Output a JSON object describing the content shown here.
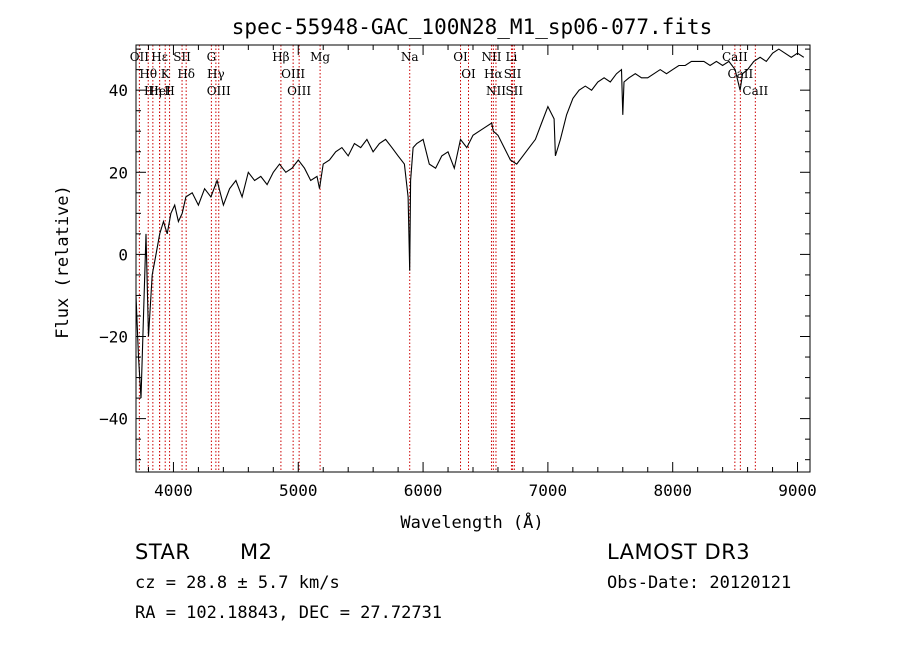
{
  "chart_data": {
    "type": "line",
    "title": "spec-55948-GAC_100N28_M1_sp06-077.fits",
    "xlabel": "Wavelength (Å)",
    "ylabel": "Flux (relative)",
    "xlim": [
      3700,
      9100
    ],
    "ylim": [
      -53,
      51
    ],
    "x_ticks": [
      4000,
      5000,
      6000,
      7000,
      8000,
      9000
    ],
    "y_ticks": [
      -40,
      -20,
      0,
      20,
      40
    ],
    "x_tick_labels": [
      "4000",
      "5000",
      "6000",
      "7000",
      "8000",
      "9000"
    ],
    "y_tick_labels": [
      "−40",
      "−20",
      "0",
      "20",
      "40"
    ],
    "series": [
      {
        "name": "spectrum",
        "x": [
          3700,
          3720,
          3740,
          3760,
          3780,
          3800,
          3830,
          3860,
          3890,
          3920,
          3950,
          3980,
          4010,
          4040,
          4070,
          4100,
          4150,
          4200,
          4250,
          4300,
          4350,
          4400,
          4450,
          4500,
          4550,
          4600,
          4650,
          4700,
          4750,
          4800,
          4850,
          4900,
          4950,
          5000,
          5050,
          5100,
          5150,
          5170,
          5200,
          5250,
          5300,
          5350,
          5400,
          5450,
          5500,
          5550,
          5600,
          5650,
          5700,
          5750,
          5800,
          5850,
          5880,
          5893,
          5900,
          5920,
          5950,
          6000,
          6050,
          6100,
          6150,
          6200,
          6250,
          6300,
          6350,
          6400,
          6450,
          6500,
          6550,
          6563,
          6600,
          6650,
          6700,
          6750,
          6800,
          6850,
          6900,
          6950,
          7000,
          7050,
          7060,
          7100,
          7150,
          7200,
          7250,
          7300,
          7350,
          7400,
          7450,
          7500,
          7550,
          7590,
          7600,
          7610,
          7650,
          7700,
          7750,
          7800,
          7850,
          7900,
          7950,
          8000,
          8050,
          8100,
          8150,
          8200,
          8250,
          8300,
          8350,
          8400,
          8450,
          8500,
          8540,
          8560,
          8600,
          8650,
          8700,
          8750,
          8800,
          8850,
          8900,
          8950,
          9000,
          9050
        ],
        "y": [
          -10,
          -25,
          -35,
          -15,
          5,
          -20,
          -5,
          0,
          5,
          8,
          5,
          10,
          12,
          8,
          10,
          14,
          15,
          12,
          16,
          14,
          18,
          12,
          16,
          18,
          14,
          20,
          18,
          19,
          17,
          20,
          22,
          20,
          21,
          23,
          21,
          18,
          19,
          16,
          22,
          23,
          25,
          26,
          24,
          27,
          26,
          28,
          25,
          27,
          28,
          26,
          24,
          22,
          14,
          -4,
          18,
          26,
          27,
          28,
          22,
          21,
          24,
          25,
          21,
          28,
          26,
          29,
          30,
          31,
          32,
          30,
          29,
          26,
          23,
          22,
          24,
          26,
          28,
          32,
          36,
          33,
          24,
          28,
          34,
          38,
          40,
          41,
          40,
          42,
          43,
          42,
          44,
          45,
          34,
          42,
          43,
          44,
          43,
          43,
          44,
          45,
          44,
          45,
          46,
          46,
          47,
          47,
          47,
          46,
          47,
          46,
          47,
          45,
          40,
          44,
          45,
          47,
          48,
          47,
          49,
          50,
          49,
          48,
          49,
          48
        ]
      }
    ],
    "lines": [
      {
        "label": "Hθ",
        "x": 3798
      },
      {
        "label": "OII",
        "x": 3727
      },
      {
        "label": "Hη",
        "x": 3835
      },
      {
        "label": "Hε",
        "x": 3889
      },
      {
        "label": "K",
        "x": 3934
      },
      {
        "label": "H",
        "x": 3969
      },
      {
        "label": "HeI",
        "x": 3889
      },
      {
        "label": "SII",
        "x": 4069
      },
      {
        "label": "Hδ",
        "x": 4102
      },
      {
        "label": "OIII",
        "x": 4363
      },
      {
        "label": "Hγ",
        "x": 4340
      },
      {
        "label": "G",
        "x": 4304
      },
      {
        "label": "Hβ",
        "x": 4861
      },
      {
        "label": "OIII",
        "x": 4959
      },
      {
        "label": "OIII",
        "x": 5007
      },
      {
        "label": "Mg",
        "x": 5175
      },
      {
        "label": "Na",
        "x": 5893
      },
      {
        "label": "OI",
        "x": 6300
      },
      {
        "label": "OI",
        "x": 6364
      },
      {
        "label": "Hα",
        "x": 6563
      },
      {
        "label": "NII",
        "x": 6548
      },
      {
        "label": "NII",
        "x": 6584
      },
      {
        "label": "SII",
        "x": 6717
      },
      {
        "label": "SII",
        "x": 6731
      },
      {
        "label": "Li",
        "x": 6708
      },
      {
        "label": "CaII",
        "x": 8498
      },
      {
        "label": "CaII",
        "x": 8542
      },
      {
        "label": "CaII",
        "x": 8662
      }
    ]
  },
  "info": {
    "class_label": "STAR",
    "subclass_label": "M2",
    "cz": "cz = 28.8 ± 5.7 km/s",
    "coords": "RA = 102.18843, DEC =  27.72731",
    "survey": "LAMOST DR3",
    "obs_date": "Obs-Date: 20120121"
  },
  "colors": {
    "spectrum": "#000000",
    "line_marker": "#cc0000",
    "axis": "#000000"
  }
}
